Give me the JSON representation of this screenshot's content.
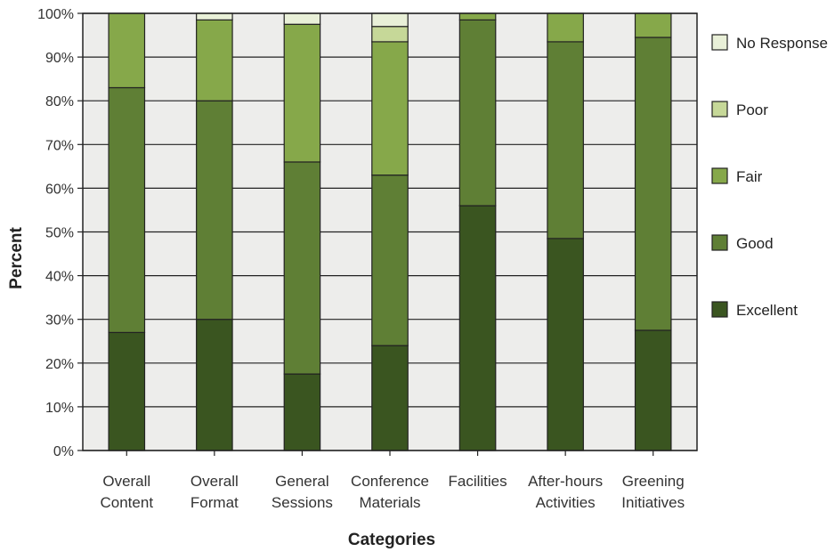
{
  "chart_data": {
    "type": "bar",
    "stacked": true,
    "title": "",
    "xlabel": "Categories",
    "ylabel": "Percent",
    "ylim": [
      0,
      100
    ],
    "y_ticks": [
      "0%",
      "10%",
      "20%",
      "30%",
      "40%",
      "50%",
      "60%",
      "70%",
      "80%",
      "90%",
      "100%"
    ],
    "categories": [
      [
        "Overall",
        "Content"
      ],
      [
        "Overall",
        "Format"
      ],
      [
        "General",
        "Sessions"
      ],
      [
        "Conference",
        "Materials"
      ],
      [
        "Facilities"
      ],
      [
        "After-hours",
        "Activities"
      ],
      [
        "Greening",
        "Initiatives"
      ]
    ],
    "series": [
      {
        "name": "Excellent",
        "color": "#3a5520",
        "values": [
          27,
          30,
          17.5,
          24,
          56,
          48.5,
          27.5
        ]
      },
      {
        "name": "Good",
        "color": "#5f7f35",
        "values": [
          56,
          50,
          48.5,
          39,
          42.5,
          45,
          67
        ]
      },
      {
        "name": "Fair",
        "color": "#86a84a",
        "values": [
          17,
          18.5,
          31.5,
          30.5,
          1.5,
          6.5,
          5.5
        ]
      },
      {
        "name": "Poor",
        "color": "#c6d898",
        "values": [
          0,
          0,
          0,
          3.5,
          0,
          0,
          0
        ]
      },
      {
        "name": "No Response",
        "color": "#e9f0d8",
        "values": [
          0,
          1.5,
          2.5,
          3,
          0,
          0,
          0
        ]
      }
    ],
    "legend": {
      "position": "right",
      "order": [
        "No Response",
        "Poor",
        "Fair",
        "Good",
        "Excellent"
      ]
    },
    "grid": true,
    "plot_background": "#ededeb"
  }
}
